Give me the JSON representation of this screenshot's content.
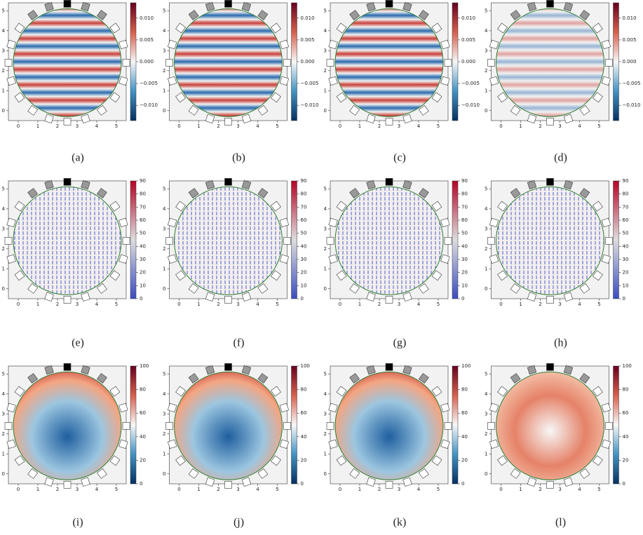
{
  "chart_data": [
    {
      "type": "heatmap",
      "caption": "(a)",
      "xlim": [
        -0.5,
        5.5
      ],
      "ylim": [
        -0.5,
        5.4
      ],
      "xticks": [
        0,
        1,
        2,
        3,
        4,
        5
      ],
      "yticks": [
        0,
        1,
        2,
        3,
        4,
        5
      ],
      "colormap": "RdBu_r",
      "clim": [
        -0.0135,
        0.0135
      ],
      "cticks": [
        {
          "value": -0.01,
          "label": "−0.010"
        },
        {
          "value": -0.005,
          "label": "−0.005"
        },
        {
          "value": 0,
          "label": "0.000"
        },
        {
          "value": 0.005,
          "label": "0.005"
        },
        {
          "value": 0.01,
          "label": "0.010"
        }
      ]
    },
    {
      "type": "heatmap",
      "caption": "(b)",
      "xlim": [
        -0.5,
        5.5
      ],
      "ylim": [
        -0.5,
        5.4
      ],
      "xticks": [
        0,
        1,
        2,
        3,
        4,
        5
      ],
      "yticks": [
        0,
        1,
        2,
        3,
        4,
        5
      ],
      "colormap": "RdBu_r",
      "clim": [
        -0.0135,
        0.0135
      ],
      "cticks": [
        {
          "value": -0.01,
          "label": "−0.010"
        },
        {
          "value": -0.005,
          "label": "−0.005"
        },
        {
          "value": 0,
          "label": "0.000"
        },
        {
          "value": 0.005,
          "label": "0.005"
        },
        {
          "value": 0.01,
          "label": "0.010"
        }
      ]
    },
    {
      "type": "heatmap",
      "caption": "(c)",
      "xlim": [
        -0.5,
        5.5
      ],
      "ylim": [
        -0.5,
        5.4
      ],
      "xticks": [
        0,
        1,
        2,
        3,
        4,
        5
      ],
      "yticks": [
        0,
        1,
        2,
        3,
        4,
        5
      ],
      "colormap": "RdBu_r",
      "clim": [
        -0.0135,
        0.0135
      ],
      "cticks": [
        {
          "value": -0.01,
          "label": "−0.010"
        },
        {
          "value": -0.005,
          "label": "−0.005"
        },
        {
          "value": 0,
          "label": "0.000"
        },
        {
          "value": 0.005,
          "label": "0.005"
        },
        {
          "value": 0.01,
          "label": "0.010"
        }
      ]
    },
    {
      "type": "heatmap",
      "caption": "(d)",
      "xlim": [
        -0.5,
        5.5
      ],
      "ylim": [
        -0.5,
        5.4
      ],
      "xticks": [
        0,
        1,
        2,
        3,
        4,
        5
      ],
      "yticks": [
        0,
        1,
        2,
        3,
        4,
        5
      ],
      "colormap": "RdBu_r",
      "clim": [
        -0.0135,
        0.0135
      ],
      "cticks": [
        {
          "value": -0.01,
          "label": "−0.010"
        },
        {
          "value": -0.005,
          "label": "−0.005"
        },
        {
          "value": 0,
          "label": "0.000"
        },
        {
          "value": 0.005,
          "label": "0.005"
        },
        {
          "value": 0.01,
          "label": "0.010"
        }
      ]
    },
    {
      "type": "heatmap",
      "caption": "(e)",
      "xlim": [
        -0.5,
        5.5
      ],
      "ylim": [
        -0.5,
        5.4
      ],
      "xticks": [
        0,
        1,
        2,
        3,
        4,
        5
      ],
      "yticks": [
        0,
        1,
        2,
        3,
        4,
        5
      ],
      "colormap": "coolwarm",
      "clim": [
        0,
        90
      ],
      "cticks": [
        0,
        10,
        20,
        30,
        40,
        50,
        60,
        70,
        80,
        90
      ]
    },
    {
      "type": "heatmap",
      "caption": "(f)",
      "xlim": [
        -0.5,
        5.5
      ],
      "ylim": [
        -0.5,
        5.4
      ],
      "xticks": [
        0,
        1,
        2,
        3,
        4,
        5
      ],
      "yticks": [
        0,
        1,
        2,
        3,
        4,
        5
      ],
      "colormap": "coolwarm",
      "clim": [
        0,
        90
      ],
      "cticks": [
        0,
        10,
        20,
        30,
        40,
        50,
        60,
        70,
        80,
        90
      ]
    },
    {
      "type": "heatmap",
      "caption": "(g)",
      "xlim": [
        -0.5,
        5.5
      ],
      "ylim": [
        -0.5,
        5.4
      ],
      "xticks": [
        0,
        1,
        2,
        3,
        4,
        5
      ],
      "yticks": [
        0,
        1,
        2,
        3,
        4,
        5
      ],
      "colormap": "coolwarm",
      "clim": [
        0,
        90
      ],
      "cticks": [
        0,
        10,
        20,
        30,
        40,
        50,
        60,
        70,
        80,
        90
      ]
    },
    {
      "type": "heatmap",
      "caption": "(h)",
      "xlim": [
        -0.5,
        5.5
      ],
      "ylim": [
        -0.5,
        5.4
      ],
      "xticks": [
        0,
        1,
        2,
        3,
        4,
        5
      ],
      "yticks": [
        0,
        1,
        2,
        3,
        4,
        5
      ],
      "colormap": "coolwarm",
      "clim": [
        0,
        90
      ],
      "cticks": [
        0,
        10,
        20,
        30,
        40,
        50,
        60,
        70,
        80,
        90
      ]
    },
    {
      "type": "heatmap",
      "caption": "(i)",
      "xlim": [
        -0.5,
        5.5
      ],
      "ylim": [
        -0.5,
        5.4
      ],
      "xticks": [
        0,
        1,
        2,
        3,
        4,
        5
      ],
      "yticks": [
        0,
        1,
        2,
        3,
        4,
        5
      ],
      "colormap": "RdBu_r",
      "clim": [
        0,
        100
      ],
      "cticks": [
        0,
        20,
        40,
        60,
        80,
        100
      ]
    },
    {
      "type": "heatmap",
      "caption": "(j)",
      "xlim": [
        -0.5,
        5.5
      ],
      "ylim": [
        -0.5,
        5.4
      ],
      "xticks": [
        0,
        1,
        2,
        3,
        4,
        5
      ],
      "yticks": [
        0,
        1,
        2,
        3,
        4,
        5
      ],
      "colormap": "RdBu_r",
      "clim": [
        0,
        100
      ],
      "cticks": [
        0,
        20,
        40,
        60,
        80,
        100
      ]
    },
    {
      "type": "heatmap",
      "caption": "(k)",
      "xlim": [
        -0.5,
        5.5
      ],
      "ylim": [
        -0.5,
        5.4
      ],
      "xticks": [
        0,
        1,
        2,
        3,
        4,
        5
      ],
      "yticks": [
        0,
        1,
        2,
        3,
        4,
        5
      ],
      "colormap": "RdBu_r",
      "clim": [
        0,
        100
      ],
      "cticks": [
        0,
        20,
        40,
        60,
        80,
        100
      ]
    },
    {
      "type": "heatmap",
      "caption": "(l)",
      "xlim": [
        -0.5,
        5.5
      ],
      "ylim": [
        -0.5,
        5.4
      ],
      "xticks": [
        0,
        1,
        2,
        3,
        4,
        5
      ],
      "yticks": [
        0,
        1,
        2,
        3,
        4,
        5
      ],
      "colormap": "RdBu_r",
      "clim": [
        0,
        100
      ],
      "cticks": [
        0,
        20,
        40,
        60,
        80,
        100
      ]
    }
  ]
}
